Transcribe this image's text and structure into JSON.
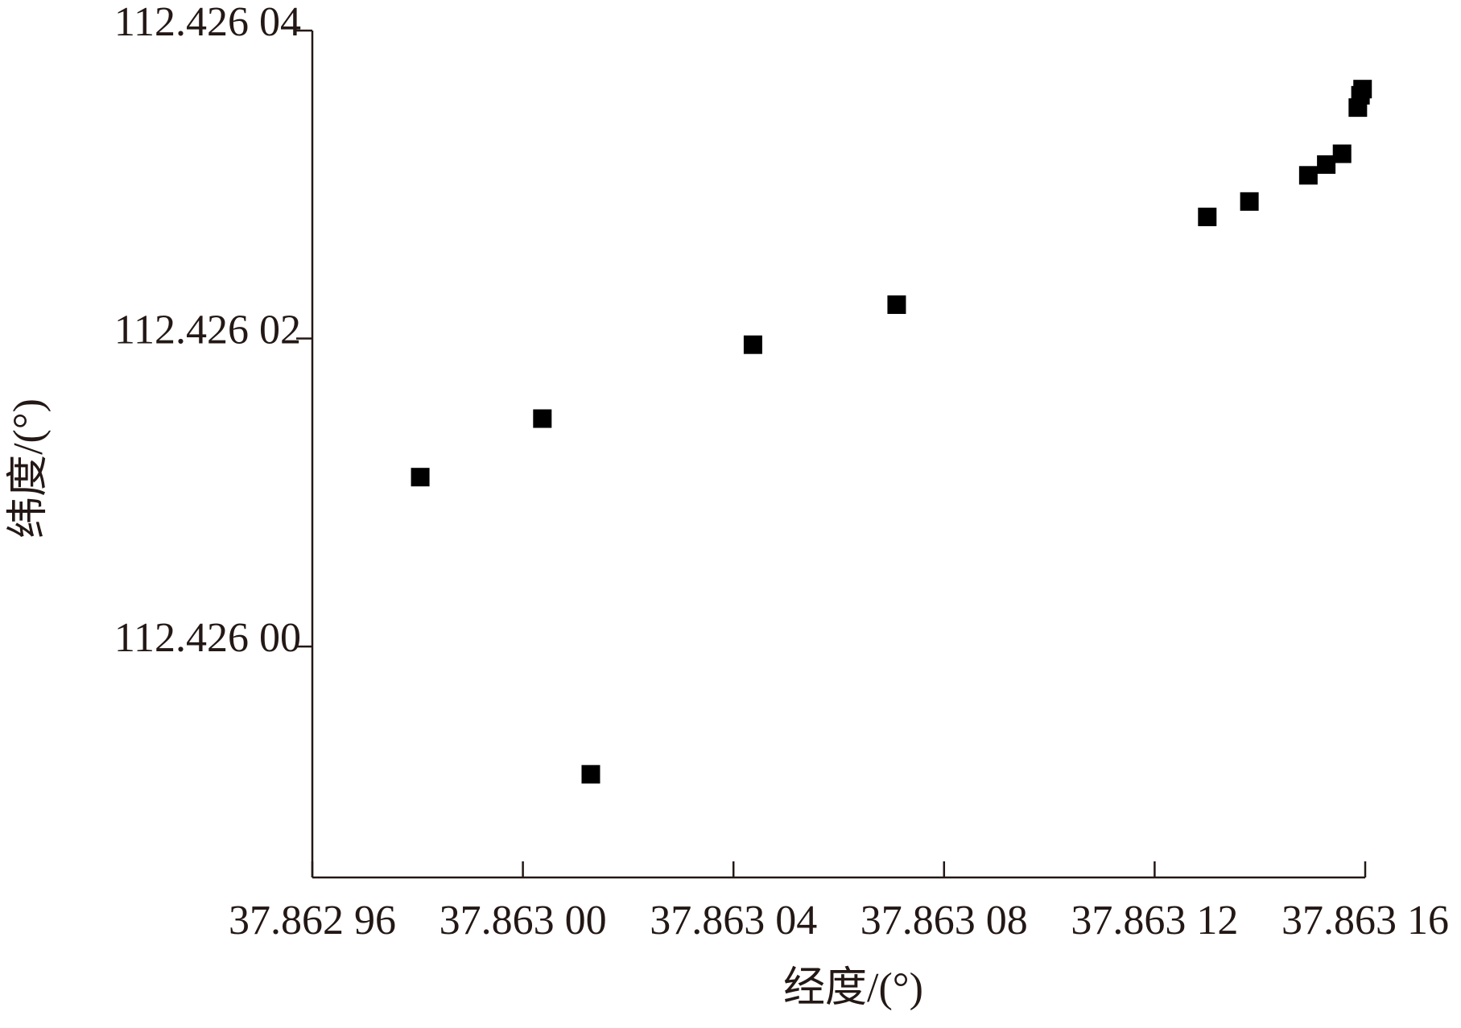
{
  "chart_data": {
    "type": "scatter",
    "x_label": "经度/(°)",
    "y_label": "纬度/(°)",
    "color": "#000000",
    "marker": "square",
    "xlim": [
      37.86296,
      37.86316
    ],
    "ylim": [
      112.425985,
      112.42604
    ],
    "xticks": [
      {
        "value": 37.86296,
        "label": "37.862 96"
      },
      {
        "value": 37.863,
        "label": "37.863 00"
      },
      {
        "value": 37.86304,
        "label": "37.863 04"
      },
      {
        "value": 37.86308,
        "label": "37.863 08"
      },
      {
        "value": 37.86312,
        "label": "37.863 12"
      },
      {
        "value": 37.86316,
        "label": "37.863 16"
      }
    ],
    "yticks": [
      {
        "value": 112.426,
        "label": "112.426 00"
      },
      {
        "value": 112.42602,
        "label": "112.426 02"
      },
      {
        "value": 112.42604,
        "label": "112.426 04"
      }
    ],
    "x": [
      37.8629805,
      37.8630037,
      37.8630129,
      37.8630437,
      37.863071,
      37.86313,
      37.863138,
      37.8631492,
      37.8631526,
      37.8631556,
      37.8631586,
      37.8631591,
      37.8631595
    ],
    "values": [
      112.426011,
      112.4260148,
      112.4259917,
      112.4260196,
      112.4260222,
      112.4260279,
      112.4260289,
      112.4260306,
      112.4260313,
      112.426032,
      112.426035,
      112.4260358,
      112.4260362
    ]
  }
}
